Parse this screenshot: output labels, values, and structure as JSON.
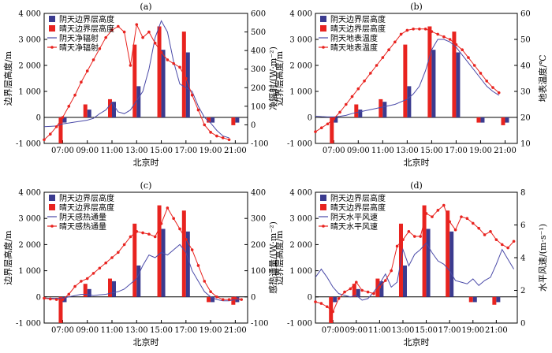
{
  "chart_data": [
    {
      "type": "bar",
      "panel_label": "(a)",
      "xlabel": "北京时",
      "ylabel": "边界层高度/m",
      "y2label": "净辐射/(W·m⁻²)",
      "ylim": [
        -1000,
        4000
      ],
      "yticks": [
        -1000,
        0,
        1000,
        2000,
        3000,
        4000
      ],
      "ytick_labels": [
        "-1 000",
        "0",
        "1 000",
        "2 000",
        "3 000",
        "4 000"
      ],
      "y2lim": [
        -100,
        600
      ],
      "y2ticks": [
        -100,
        0,
        100,
        200,
        300,
        400,
        500,
        600
      ],
      "y2tick_labels": [
        "-100",
        "0",
        "100",
        "200",
        "300",
        "400",
        "500",
        "600"
      ],
      "xlim": [
        5.5,
        22
      ],
      "xticks": [
        7,
        9,
        11,
        13,
        15,
        17,
        19,
        21
      ],
      "xtick_labels": [
        "07:00",
        "09:00",
        "11:00",
        "13:00",
        "15:00",
        "17:00",
        "19:00",
        "21:00"
      ],
      "legend": [
        "阴天边界层高度",
        "晴天边界层高度",
        "阴天净辐射",
        "晴天净辐射"
      ],
      "bar_x": [
        7,
        9,
        11,
        13,
        15,
        17,
        19,
        21
      ],
      "bars_cloudy": [
        -200,
        300,
        600,
        1200,
        2600,
        2500,
        -200,
        -200
      ],
      "bars_sunny": [
        -1000,
        500,
        700,
        2800,
        3500,
        3300,
        -200,
        -300
      ],
      "line_cloudy": {
        "x": [
          5.5,
          6,
          6.5,
          7,
          7.5,
          8,
          8.5,
          9,
          9.5,
          10,
          10.5,
          11,
          11.5,
          12,
          12.5,
          13,
          13.5,
          14,
          14.5,
          15,
          15.5,
          16,
          16.5,
          17,
          17.5,
          18,
          18.5,
          19,
          19.5,
          20,
          20.5
        ],
        "y": [
          -10,
          -8,
          -6,
          5,
          10,
          15,
          20,
          25,
          35,
          60,
          80,
          120,
          70,
          60,
          80,
          130,
          180,
          300,
          470,
          560,
          500,
          340,
          220,
          200,
          180,
          100,
          40,
          10,
          -30,
          -60,
          -70
        ]
      },
      "line_sunny": {
        "x": [
          5.5,
          6,
          6.5,
          7,
          7.5,
          8,
          8.5,
          9,
          9.5,
          10,
          10.5,
          11,
          11.5,
          12,
          12.5,
          13,
          13.5,
          14,
          14.5,
          15,
          15.5,
          16,
          16.5,
          17,
          17.5,
          18,
          18.5,
          19,
          19.5,
          20,
          20.5
        ],
        "y": [
          -80,
          -50,
          -10,
          40,
          100,
          160,
          230,
          290,
          350,
          410,
          470,
          510,
          530,
          500,
          320,
          540,
          470,
          500,
          440,
          390,
          350,
          330,
          310,
          250,
          160,
          80,
          0,
          -40,
          -60,
          -70,
          -80
        ]
      }
    },
    {
      "type": "bar",
      "panel_label": "(b)",
      "xlabel": "北京时",
      "ylabel": "边界层高度/m",
      "y2label": "地表温度/℃",
      "ylim": [
        -1000,
        4000
      ],
      "yticks": [
        -1000,
        0,
        1000,
        2000,
        3000,
        4000
      ],
      "ytick_labels": [
        "-1 000",
        "0",
        "1 000",
        "2 000",
        "3 000",
        "4 000"
      ],
      "y2lim": [
        10,
        60
      ],
      "y2ticks": [
        10,
        20,
        30,
        40,
        50,
        60
      ],
      "y2tick_labels": [
        "10",
        "20",
        "30",
        "40",
        "50",
        "60"
      ],
      "xlim": [
        5.5,
        22
      ],
      "xticks": [
        7,
        9,
        11,
        13,
        15,
        17,
        19,
        21
      ],
      "xtick_labels": [
        "07:00",
        "09:00",
        "11:00",
        "13:00",
        "15:00",
        "17:00",
        "19:00",
        "21:00"
      ],
      "legend": [
        "阴天边界层高度",
        "晴天边界层高度",
        "阴天地表温度",
        "晴天地表温度"
      ],
      "bar_x": [
        7,
        9,
        11,
        13,
        15,
        17,
        19,
        21
      ],
      "bars_cloudy": [
        -200,
        300,
        600,
        1200,
        2600,
        2500,
        -200,
        -200
      ],
      "bars_sunny": [
        -1000,
        500,
        700,
        2800,
        3500,
        3300,
        -200,
        -300
      ],
      "line_cloudy": {
        "x": [
          5.5,
          6,
          6.5,
          7,
          7.5,
          8,
          8.5,
          9,
          9.5,
          10,
          10.5,
          11,
          11.5,
          12,
          12.5,
          13,
          13.5,
          14,
          14.5,
          15,
          15.5,
          16,
          16.5,
          17,
          17.5,
          18,
          18.5,
          19,
          19.5,
          20,
          20.5
        ],
        "y": [
          20.5,
          20.3,
          20.2,
          20.2,
          20.4,
          20.8,
          21.5,
          22,
          22.5,
          23,
          23.5,
          24,
          24.5,
          25,
          26,
          27,
          29,
          32,
          38,
          46,
          50,
          50,
          49,
          47,
          44,
          41,
          38,
          35,
          32,
          30,
          28.5
        ]
      },
      "line_sunny": {
        "x": [
          5.5,
          6,
          6.5,
          7,
          7.5,
          8,
          8.5,
          9,
          9.5,
          10,
          10.5,
          11,
          11.5,
          12,
          12.5,
          13,
          13.5,
          14,
          14.5,
          15,
          15.5,
          16,
          16.5,
          17,
          17.5,
          18,
          18.5,
          19,
          19.5,
          20,
          20.5
        ],
        "y": [
          14.5,
          16,
          17.5,
          19.5,
          22,
          25,
          28,
          31,
          34,
          37,
          40,
          43,
          46,
          49,
          52,
          53.5,
          54,
          54,
          54,
          53,
          52,
          51,
          50,
          48,
          46,
          43,
          40,
          37,
          34,
          31.5,
          29.5
        ]
      }
    },
    {
      "type": "bar",
      "panel_label": "(c)",
      "xlabel": "北京时",
      "ylabel": "边界层高度/m",
      "y2label": "感热通量/(W·m⁻²)",
      "ylim": [
        -1000,
        4000
      ],
      "yticks": [
        -1000,
        0,
        1000,
        2000,
        3000,
        4000
      ],
      "ytick_labels": [
        "-1 000",
        "0",
        "1 000",
        "2 000",
        "3 000",
        "4 000"
      ],
      "y2lim": [
        -100,
        400
      ],
      "y2ticks": [
        -100,
        0,
        100,
        200,
        300,
        400
      ],
      "y2tick_labels": [
        "-100",
        "0",
        "100",
        "200",
        "300",
        "400"
      ],
      "xlim": [
        5.5,
        22
      ],
      "xticks": [
        7,
        9,
        11,
        13,
        15,
        17,
        19,
        21
      ],
      "xtick_labels": [
        "07:00",
        "09:00",
        "11:00",
        "13:00",
        "15:00",
        "17:00",
        "19:00",
        "21:00"
      ],
      "legend": [
        "阴天边界层高度",
        "晴天边界层高度",
        "阴天感热通量",
        "晴天感热通量"
      ],
      "bar_x": [
        7,
        9,
        11,
        13,
        15,
        17,
        19,
        21
      ],
      "bars_cloudy": [
        -200,
        300,
        600,
        1200,
        2600,
        2500,
        -200,
        -200
      ],
      "bars_sunny": [
        -1000,
        500,
        700,
        2800,
        3500,
        3300,
        -200,
        -300
      ],
      "line_cloudy": {
        "x": [
          5.5,
          6,
          6.5,
          7,
          7.5,
          8,
          8.5,
          9,
          9.5,
          10,
          10.5,
          11,
          11.5,
          12,
          12.5,
          13,
          13.5,
          14,
          14.5,
          15,
          15.5,
          16,
          16.5,
          17,
          17.5,
          18,
          18.5,
          19,
          19.5,
          20,
          20.5,
          21,
          21.5
        ],
        "y": [
          -5,
          -5,
          -5,
          -5,
          0,
          5,
          10,
          10,
          5,
          8,
          10,
          15,
          20,
          30,
          50,
          70,
          120,
          160,
          150,
          170,
          160,
          180,
          200,
          170,
          100,
          60,
          20,
          0,
          -10,
          -15,
          -15,
          -10,
          -10
        ]
      },
      "line_sunny": {
        "x": [
          5.5,
          6,
          6.5,
          7,
          7.5,
          8,
          8.5,
          9,
          9.5,
          10,
          10.5,
          11,
          11.5,
          12,
          12.5,
          13,
          13.5,
          14,
          14.5,
          15,
          15.5,
          16,
          16.5,
          17,
          17.5,
          18,
          18.5,
          19,
          19.5,
          20,
          20.5,
          21,
          21.5
        ],
        "y": [
          -5,
          -8,
          -10,
          -10,
          10,
          40,
          60,
          70,
          90,
          110,
          130,
          150,
          170,
          200,
          230,
          250,
          245,
          240,
          230,
          280,
          340,
          300,
          260,
          220,
          180,
          120,
          60,
          20,
          0,
          -10,
          -10,
          -5,
          -10
        ]
      }
    },
    {
      "type": "bar",
      "panel_label": "(d)",
      "xlabel": "北京时",
      "ylabel": "边界层高度/m",
      "y2label": "水平风速/(m·s⁻¹)",
      "ylim": [
        -1000,
        4000
      ],
      "yticks": [
        -1000,
        0,
        1000,
        2000,
        3000,
        4000
      ],
      "ytick_labels": [
        "-1 000",
        "0",
        "1 000",
        "2 000",
        "3 000",
        "4 000"
      ],
      "y2lim": [
        0,
        8
      ],
      "y2ticks": [
        0,
        2,
        4,
        6,
        8
      ],
      "y2tick_labels": [
        "0",
        "2",
        "4",
        "6",
        "8"
      ],
      "xlim": [
        5.5,
        22.8
      ],
      "xticks": [
        7,
        9,
        11,
        13,
        15,
        17,
        19,
        21
      ],
      "xtick_labels": [
        "07:00",
        "09:00",
        "11:00",
        "13:00",
        "15:00",
        "17:00",
        "19:00",
        "21:00"
      ],
      "legend": [
        "阴天边界层高度",
        "晴天边界层高度",
        "阴天水平风速",
        "晴天水平风速"
      ],
      "bar_x": [
        7,
        9,
        11,
        13,
        15,
        17,
        19,
        21
      ],
      "bars_cloudy": [
        -200,
        300,
        600,
        1200,
        2600,
        2500,
        -200,
        -200
      ],
      "bars_sunny": [
        -1000,
        500,
        700,
        2800,
        3500,
        3300,
        -200,
        -300
      ],
      "line_cloudy": {
        "x": [
          5.5,
          6,
          6.5,
          7,
          7.5,
          8,
          8.5,
          9,
          9.5,
          10,
          10.5,
          11,
          11.5,
          12,
          12.5,
          13,
          13.5,
          14,
          14.5,
          15,
          15.5,
          16,
          16.5,
          17,
          17.5,
          18,
          18.5,
          19,
          19.5,
          20,
          20.5,
          21,
          21.5,
          22,
          22.5
        ],
        "y": [
          2.8,
          3.3,
          2.8,
          2.2,
          1.8,
          1.7,
          1.6,
          1.7,
          1.4,
          1.5,
          1.9,
          2.4,
          3.0,
          2.2,
          2.5,
          4.5,
          3.5,
          4.2,
          4.5,
          4.9,
          4.3,
          3.8,
          3.6,
          3.2,
          2.6,
          2.5,
          2.4,
          2.7,
          2.3,
          2.6,
          2.8,
          3.6,
          4.5,
          3.9,
          3.3
        ]
      },
      "line_sunny": {
        "x": [
          5.5,
          6,
          6.5,
          7,
          7.5,
          8,
          8.5,
          9,
          9.5,
          10,
          10.5,
          11,
          11.5,
          12,
          12.5,
          13,
          13.5,
          14,
          14.5,
          15,
          15.5,
          16,
          16.5,
          17,
          17.5,
          18,
          18.5,
          19,
          19.5,
          20,
          20.5,
          21,
          21.5,
          22,
          22.5
        ],
        "y": [
          1.3,
          1.2,
          1.0,
          0.7,
          1.5,
          1.9,
          2.1,
          2.5,
          2.0,
          1.9,
          1.8,
          2.2,
          2.6,
          3.2,
          4.7,
          5.1,
          5.6,
          5.3,
          5.3,
          6.7,
          6.5,
          6.9,
          7.2,
          6.2,
          5.7,
          6.5,
          6.4,
          6.1,
          5.8,
          5.4,
          5.6,
          5.1,
          4.8,
          4.6,
          5.0
        ]
      }
    }
  ]
}
